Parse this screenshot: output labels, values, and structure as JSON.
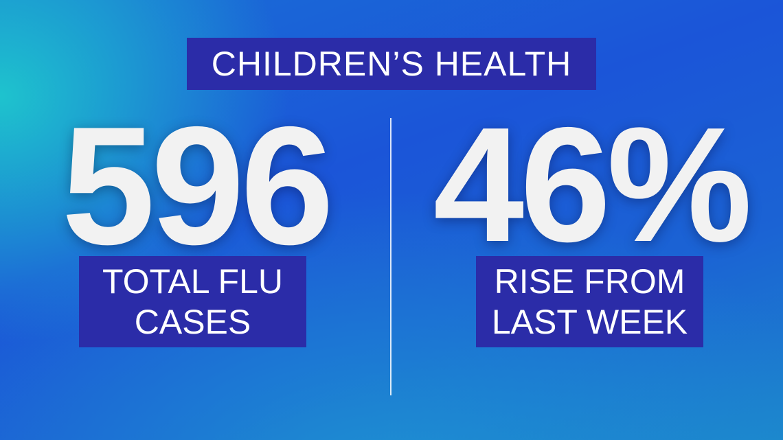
{
  "header": {
    "title": "CHILDREN’S HEALTH"
  },
  "stats": [
    {
      "figure": "596",
      "label_lines": [
        "TOTAL FLU",
        "CASES"
      ]
    },
    {
      "figure": "46%",
      "label_lines": [
        "RISE FROM",
        "LAST WEEK"
      ]
    }
  ]
}
